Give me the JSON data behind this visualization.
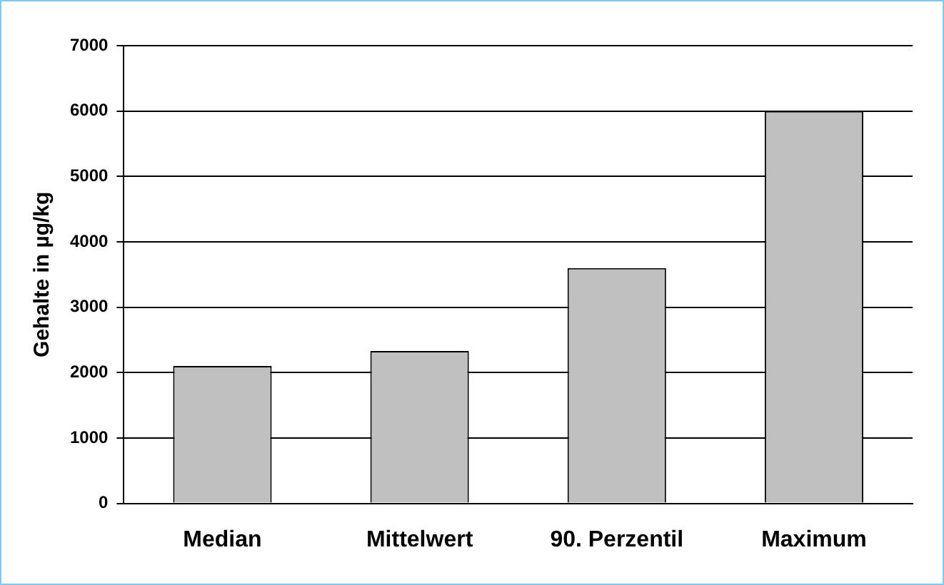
{
  "chart_data": {
    "type": "bar",
    "ylabel": "Gehalte in µg/kg",
    "categories": [
      "Median",
      "Mittelwert",
      "90. Perzentil",
      "Maximum"
    ],
    "values": [
      2100,
      2330,
      3600,
      6000
    ],
    "color": "#c0c0c0",
    "ylim": [
      0,
      7000
    ],
    "yticks": [
      0,
      1000,
      2000,
      3000,
      4000,
      5000,
      6000,
      7000
    ],
    "grid": "y",
    "legend": false
  }
}
